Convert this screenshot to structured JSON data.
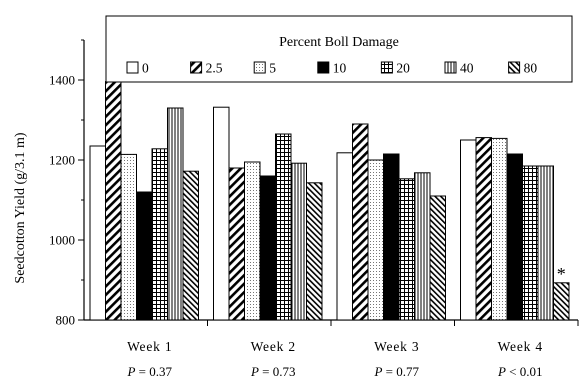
{
  "chart_data": {
    "type": "bar",
    "title": "",
    "ylabel": "Seedcotton Yield (g/3.1 m)",
    "xlabel": "",
    "ylim": [
      800,
      1500
    ],
    "yticks": [
      800,
      1000,
      1200,
      1400
    ],
    "legend": {
      "title": "Percent Boll Damage",
      "placement": "top"
    },
    "categories": [
      "Week 1",
      "Week 2",
      "Week 3",
      "Week 4"
    ],
    "pvalues": [
      {
        "label": "P",
        "text": " = 0.37"
      },
      {
        "label": "P",
        "text": " = 0.73"
      },
      {
        "label": "P",
        "text": " = 0.77"
      },
      {
        "label": "P",
        "text": " < 0.01"
      }
    ],
    "series": [
      {
        "name": "0",
        "pattern": "white",
        "values": [
          1235,
          1332,
          1218,
          1250
        ]
      },
      {
        "name": "2.5",
        "pattern": "wide-diag",
        "values": [
          1396,
          1180,
          1290,
          1256
        ]
      },
      {
        "name": "5",
        "pattern": "dots",
        "values": [
          1214,
          1195,
          1200,
          1254
        ]
      },
      {
        "name": "10",
        "pattern": "black",
        "values": [
          1120,
          1160,
          1215,
          1215
        ]
      },
      {
        "name": "20",
        "pattern": "grid",
        "values": [
          1228,
          1265,
          1153,
          1185
        ]
      },
      {
        "name": "40",
        "pattern": "vlines",
        "values": [
          1330,
          1192,
          1168,
          1185
        ]
      },
      {
        "name": "80",
        "pattern": "fine-diag",
        "values": [
          1172,
          1143,
          1110,
          893
        ]
      }
    ],
    "annotations": [
      {
        "text": "*",
        "category": "Week 4",
        "series": "80"
      }
    ]
  }
}
